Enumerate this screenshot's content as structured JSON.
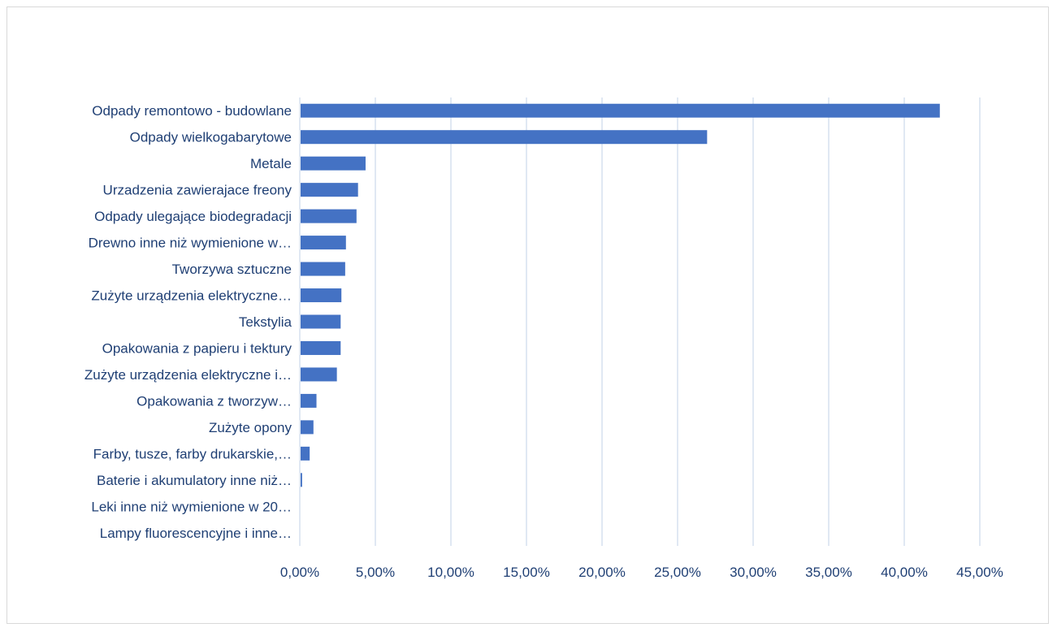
{
  "chart_data": {
    "type": "bar",
    "orientation": "horizontal",
    "title": "",
    "xlabel": "",
    "ylabel": "",
    "categories": [
      "Odpady remontowo - budowlane",
      "Odpady wielkogabarytowe",
      "Metale",
      "Urzadzenia zawierajace freony",
      "Odpady ulegające biodegradacji",
      "Drewno inne niż wymienione w…",
      "Tworzywa sztuczne",
      "Zużyte urządzenia elektryczne…",
      "Tekstylia",
      "Opakowania z papieru i tektury",
      "Zużyte urządzenia elektryczne i…",
      "Opakowania z tworzyw…",
      "Zużyte opony",
      "Farby, tusze, farby drukarskie,…",
      "Baterie i akumulatory inne niż…",
      "Leki inne niż wymienione w 20…",
      "Lampy fluorescencyjne i inne…"
    ],
    "values": [
      42.3,
      26.9,
      4.3,
      3.8,
      3.7,
      3.0,
      2.95,
      2.7,
      2.65,
      2.65,
      2.4,
      1.05,
      0.85,
      0.6,
      0.1,
      0.0,
      0.0
    ],
    "xlim": [
      0,
      45
    ],
    "ticks": [
      "0,00%",
      "5,00%",
      "10,00%",
      "15,00%",
      "20,00%",
      "25,00%",
      "30,00%",
      "35,00%",
      "40,00%",
      "45,00%"
    ],
    "tick_values": [
      0,
      5,
      10,
      15,
      20,
      25,
      30,
      35,
      40,
      45
    ],
    "grid": true,
    "legend": "none",
    "bar_color": "#4472c4",
    "text_color": "#1f3f74",
    "grid_color": "#d6e1ef"
  }
}
